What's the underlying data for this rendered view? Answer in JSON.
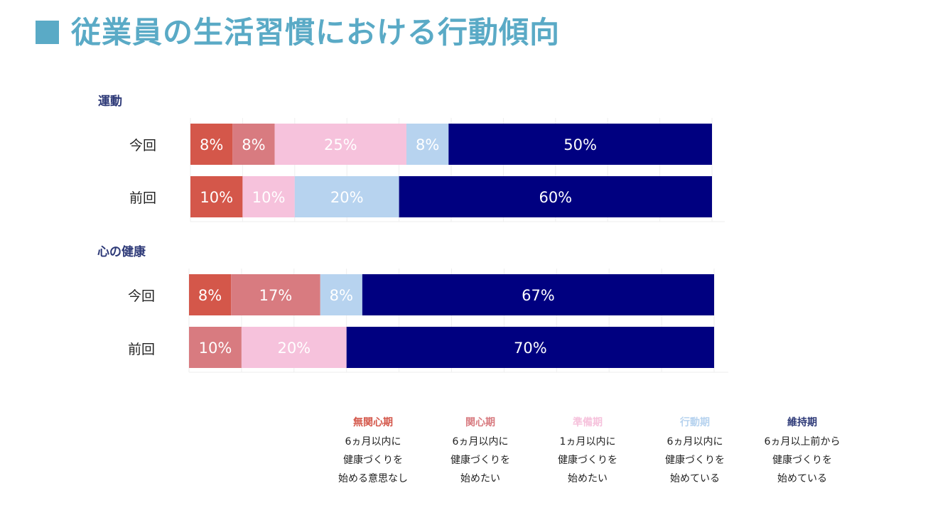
{
  "title": "従業員の生活習慣における行動傾向",
  "colors": {
    "accent": "#5aaac6",
    "stage1": "#d4574a",
    "stage2": "#d87b80",
    "stage3": "#f6c2dc",
    "stage4": "#b7d3ef",
    "stage5": "#000080",
    "section_text": "#2e3a78"
  },
  "legend": [
    {
      "name": "無関心期",
      "color": "#d4574a",
      "lines": [
        "6ヵ月以内に",
        "健康づくりを",
        "始める意思なし"
      ]
    },
    {
      "name": "関心期",
      "color": "#d87b80",
      "lines": [
        "6ヵ月以内に",
        "健康づくりを",
        "始めたい"
      ]
    },
    {
      "name": "準備期",
      "color": "#f6c2dc",
      "lines": [
        "1ヵ月以内に",
        "健康づくりを",
        "始めたい"
      ]
    },
    {
      "name": "行動期",
      "color": "#b7d3ef",
      "lines": [
        "6ヵ月以内に",
        "健康づくりを",
        "始めている"
      ]
    },
    {
      "name": "維持期",
      "color": "#2e3a78",
      "lines": [
        "6ヵ月以上前から",
        "健康づくりを",
        "始めている"
      ]
    }
  ],
  "chart_data": [
    {
      "type": "bar",
      "stacked": true,
      "orientation": "horizontal",
      "section": "運動",
      "categories": [
        "今回",
        "前回"
      ],
      "series": [
        {
          "name": "無関心期",
          "values": [
            8,
            10
          ],
          "labels": [
            "8%",
            "10%"
          ]
        },
        {
          "name": "関心期",
          "values": [
            8,
            0
          ],
          "labels": [
            "8%",
            ""
          ]
        },
        {
          "name": "準備期",
          "values": [
            25,
            10
          ],
          "labels": [
            "25%",
            "10%"
          ]
        },
        {
          "name": "行動期",
          "values": [
            8,
            20
          ],
          "labels": [
            "8%",
            "20%"
          ]
        },
        {
          "name": "維持期",
          "values": [
            50,
            60
          ],
          "labels": [
            "50%",
            "60%"
          ]
        }
      ],
      "xlim": [
        0,
        100
      ],
      "grid": true
    },
    {
      "type": "bar",
      "stacked": true,
      "orientation": "horizontal",
      "section": "心の健康",
      "categories": [
        "今回",
        "前回"
      ],
      "series": [
        {
          "name": "無関心期",
          "values": [
            8,
            0
          ],
          "labels": [
            "8%",
            ""
          ]
        },
        {
          "name": "関心期",
          "values": [
            17,
            10
          ],
          "labels": [
            "17%",
            "10%"
          ]
        },
        {
          "name": "準備期",
          "values": [
            0,
            20
          ],
          "labels": [
            "",
            "20%"
          ]
        },
        {
          "name": "行動期",
          "values": [
            8,
            0
          ],
          "labels": [
            "8%",
            ""
          ]
        },
        {
          "name": "維持期",
          "values": [
            67,
            70
          ],
          "labels": [
            "67%",
            "70%"
          ]
        }
      ],
      "xlim": [
        0,
        100
      ],
      "grid": true
    }
  ]
}
